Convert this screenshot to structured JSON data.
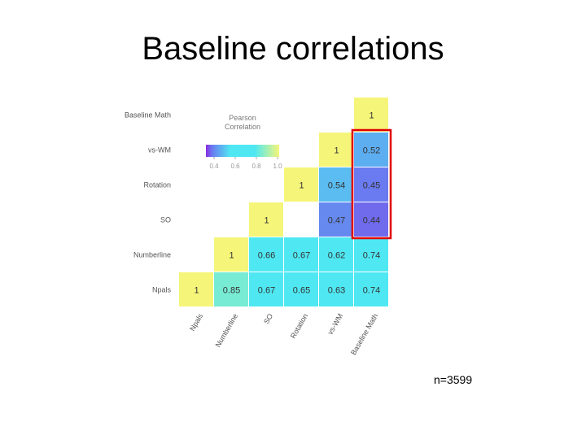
{
  "title": "Baseline correlations",
  "note": "n=3599",
  "colors": {
    "low": "#8a2be2",
    "mid1": "#6a7af0",
    "mid2": "#4fe8f2",
    "high": "#f5f57a",
    "highlight": "#e00000"
  },
  "chart_data": {
    "type": "heatmap",
    "title": "",
    "variables": [
      "Npals",
      "Numberline",
      "SO",
      "Rotation",
      "vs-WM",
      "Baseline Math"
    ],
    "x_labels": [
      "Npals",
      "Numberline",
      "SO",
      "Rotation",
      "vs-WM",
      "Baseline Math"
    ],
    "y_labels": [
      "Baseline Math",
      "vs-WM",
      "Rotation",
      "SO",
      "Numberline",
      "Npals"
    ],
    "cells": [
      {
        "row": "Baseline Math",
        "col": "Baseline Math",
        "value": 1,
        "label": "1"
      },
      {
        "row": "vs-WM",
        "col": "vs-WM",
        "value": 1,
        "label": "1"
      },
      {
        "row": "vs-WM",
        "col": "Baseline Math",
        "value": 0.52,
        "label": "0.52"
      },
      {
        "row": "Rotation",
        "col": "Rotation",
        "value": 1,
        "label": "1"
      },
      {
        "row": "Rotation",
        "col": "vs-WM",
        "value": 0.54,
        "label": "0.54"
      },
      {
        "row": "Rotation",
        "col": "Baseline Math",
        "value": 0.45,
        "label": "0.45"
      },
      {
        "row": "SO",
        "col": "SO",
        "value": 1,
        "label": "1"
      },
      {
        "row": "SO",
        "col": "vs-WM",
        "value": 0.47,
        "label": "0.47"
      },
      {
        "row": "SO",
        "col": "Baseline Math",
        "value": 0.44,
        "label": "0.44"
      },
      {
        "row": "Numberline",
        "col": "Numberline",
        "value": 1,
        "label": "1"
      },
      {
        "row": "Numberline",
        "col": "SO",
        "value": 0.66,
        "label": "0.66"
      },
      {
        "row": "Numberline",
        "col": "Rotation",
        "value": 0.67,
        "label": "0.67"
      },
      {
        "row": "Numberline",
        "col": "vs-WM",
        "value": 0.62,
        "label": "0.62"
      },
      {
        "row": "Numberline",
        "col": "Baseline Math",
        "value": 0.74,
        "label": "0.74"
      },
      {
        "row": "Npals",
        "col": "Npals",
        "value": 1,
        "label": "1"
      },
      {
        "row": "Npals",
        "col": "Numberline",
        "value": 0.85,
        "label": "0.85"
      },
      {
        "row": "Npals",
        "col": "SO",
        "value": 0.67,
        "label": "0.67"
      },
      {
        "row": "Npals",
        "col": "Rotation",
        "value": 0.65,
        "label": "0.65"
      },
      {
        "row": "Npals",
        "col": "vs-WM",
        "value": 0.63,
        "label": "0.63"
      },
      {
        "row": "Npals",
        "col": "Baseline Math",
        "value": 0.74,
        "label": "0.74"
      }
    ],
    "legend": {
      "title_lines": [
        "Pearson",
        "Correlation"
      ],
      "range": [
        0.4,
        1
      ],
      "ticks": [
        "0.4",
        "0.6",
        "0.8",
        "1.0"
      ],
      "placement": "top-left"
    },
    "highlight": {
      "column": "Baseline Math",
      "rows": [
        "vs-WM",
        "Rotation",
        "SO"
      ]
    }
  }
}
